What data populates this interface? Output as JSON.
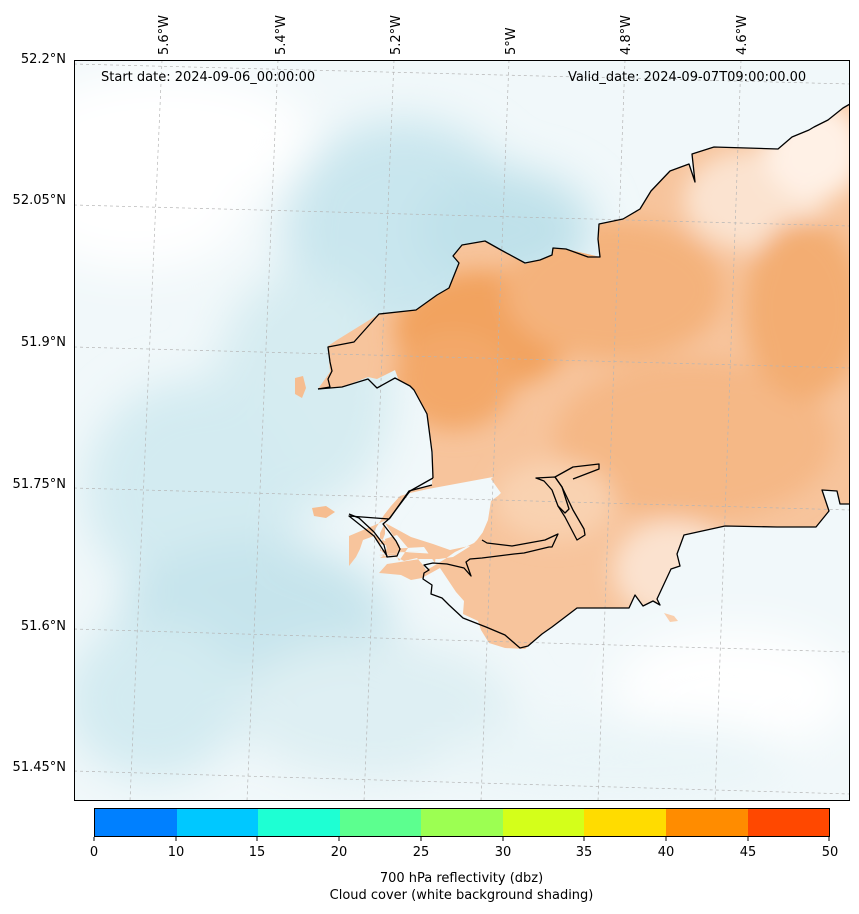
{
  "map": {
    "start_date": "Start date: 2024-09-06_00:00:00",
    "valid_date": "Valid_date: 2024-09-07T09:00:00.00",
    "lon_labels": [
      "5.6°W",
      "5.4°W",
      "5.2°W",
      "5°W",
      "4.8°W",
      "4.6°W"
    ],
    "lat_labels": [
      "52.2°N",
      "52.05°N",
      "51.9°N",
      "51.75°N",
      "51.6°N",
      "51.45°N"
    ]
  },
  "colorbar": {
    "ticks": [
      "0",
      "10",
      "15",
      "20",
      "25",
      "30",
      "35",
      "40",
      "45",
      "50"
    ],
    "colors": [
      "#0080ff",
      "#00c8ff",
      "#1effd3",
      "#5cff8f",
      "#9cff52",
      "#d4ff1a",
      "#ffdc00",
      "#ff8c00",
      "#ff4800"
    ],
    "label_line1": "700 hPa reflectivity (dbz)",
    "label_line2": "Cloud cover (white background shading)"
  },
  "colors": {
    "land_fill": "#f6bf92",
    "land_strong": "#f2a466",
    "cloud_shade": "#cfe8ef",
    "coastline": "#000000"
  }
}
